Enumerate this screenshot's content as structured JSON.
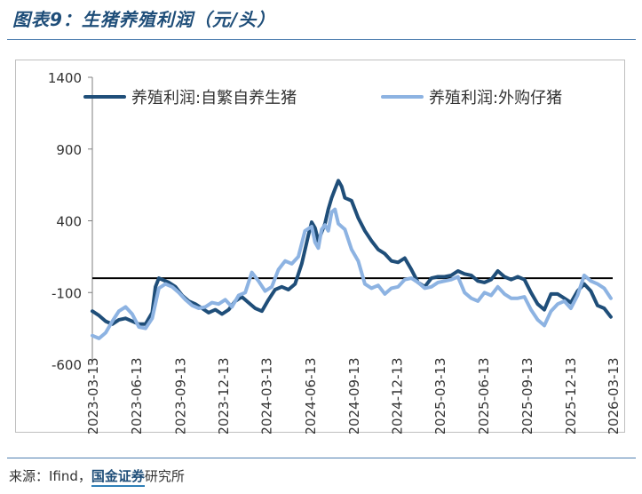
{
  "header": {
    "title": "图表9：生猪养殖利润（元/头）"
  },
  "footer": {
    "source_prefix": "来源：Ifind，",
    "source_brand": "国金证券",
    "source_suffix": "研究所"
  },
  "colors": {
    "series1": "#1f4e79",
    "series2": "#8db3e2",
    "zero_line": "#000000",
    "axis": "#7f7f7f"
  },
  "chart_data": {
    "type": "line",
    "title": "",
    "xlabel": "",
    "ylabel": "",
    "ylim": [
      -600,
      1400
    ],
    "yticks": [
      1400,
      900,
      400,
      -100,
      -600
    ],
    "xlim": [
      "2023-03-13",
      "2026-03-13"
    ],
    "xticks": [
      "2023-03-13",
      "2023-06-13",
      "2023-09-13",
      "2023-12-13",
      "2024-03-13",
      "2024-06-13",
      "2024-09-13",
      "2024-12-13",
      "2025-03-13",
      "2025-06-13",
      "2025-09-13",
      "2025-12-13",
      "2026-03-13"
    ],
    "legend_position": "top",
    "grid": false,
    "series": [
      {
        "name": "养殖利润:自繁自养生猪",
        "points": [
          [
            "2023-03-13",
            -230
          ],
          [
            "2023-03-27",
            -260
          ],
          [
            "2023-04-10",
            -300
          ],
          [
            "2023-04-24",
            -320
          ],
          [
            "2023-05-08",
            -290
          ],
          [
            "2023-05-22",
            -280
          ],
          [
            "2023-06-05",
            -300
          ],
          [
            "2023-06-19",
            -320
          ],
          [
            "2023-07-03",
            -320
          ],
          [
            "2023-07-17",
            -240
          ],
          [
            "2023-07-24",
            -60
          ],
          [
            "2023-07-31",
            0
          ],
          [
            "2023-08-07",
            -10
          ],
          [
            "2023-08-21",
            -30
          ],
          [
            "2023-09-04",
            -60
          ],
          [
            "2023-09-18",
            -120
          ],
          [
            "2023-10-02",
            -160
          ],
          [
            "2023-10-16",
            -180
          ],
          [
            "2023-10-30",
            -210
          ],
          [
            "2023-11-13",
            -240
          ],
          [
            "2023-11-27",
            -220
          ],
          [
            "2023-12-11",
            -250
          ],
          [
            "2023-12-25",
            -220
          ],
          [
            "2024-01-08",
            -160
          ],
          [
            "2024-01-22",
            -130
          ],
          [
            "2024-02-05",
            -170
          ],
          [
            "2024-02-19",
            -210
          ],
          [
            "2024-03-04",
            -230
          ],
          [
            "2024-03-18",
            -150
          ],
          [
            "2024-04-01",
            -80
          ],
          [
            "2024-04-15",
            -60
          ],
          [
            "2024-04-29",
            -80
          ],
          [
            "2024-05-13",
            -40
          ],
          [
            "2024-05-27",
            100
          ],
          [
            "2024-06-10",
            300
          ],
          [
            "2024-06-17",
            390
          ],
          [
            "2024-06-24",
            350
          ],
          [
            "2024-07-01",
            260
          ],
          [
            "2024-07-08",
            320
          ],
          [
            "2024-07-15",
            380
          ],
          [
            "2024-07-22",
            480
          ],
          [
            "2024-07-29",
            560
          ],
          [
            "2024-08-05",
            620
          ],
          [
            "2024-08-12",
            680
          ],
          [
            "2024-08-19",
            640
          ],
          [
            "2024-08-26",
            560
          ],
          [
            "2024-09-09",
            540
          ],
          [
            "2024-09-23",
            420
          ],
          [
            "2024-10-07",
            330
          ],
          [
            "2024-10-21",
            260
          ],
          [
            "2024-11-04",
            200
          ],
          [
            "2024-11-18",
            170
          ],
          [
            "2024-12-02",
            120
          ],
          [
            "2024-12-16",
            110
          ],
          [
            "2024-12-30",
            140
          ],
          [
            "2025-01-13",
            60
          ],
          [
            "2025-01-27",
            -30
          ],
          [
            "2025-02-10",
            -60
          ],
          [
            "2025-02-24",
            0
          ],
          [
            "2025-03-10",
            10
          ],
          [
            "2025-03-24",
            10
          ],
          [
            "2025-04-07",
            20
          ],
          [
            "2025-04-21",
            50
          ],
          [
            "2025-05-05",
            30
          ],
          [
            "2025-05-19",
            20
          ],
          [
            "2025-06-02",
            -20
          ],
          [
            "2025-06-16",
            -30
          ],
          [
            "2025-06-30",
            -10
          ],
          [
            "2025-07-14",
            50
          ],
          [
            "2025-07-28",
            10
          ],
          [
            "2025-08-11",
            -10
          ],
          [
            "2025-08-25",
            10
          ],
          [
            "2025-09-08",
            -10
          ],
          [
            "2025-09-22",
            -100
          ],
          [
            "2025-10-06",
            -180
          ],
          [
            "2025-10-20",
            -220
          ],
          [
            "2025-11-03",
            -110
          ],
          [
            "2025-11-17",
            -110
          ],
          [
            "2025-12-01",
            -140
          ],
          [
            "2025-12-15",
            -170
          ],
          [
            "2025-12-29",
            -90
          ],
          [
            "2026-01-12",
            -40
          ],
          [
            "2026-01-26",
            -90
          ],
          [
            "2026-02-09",
            -190
          ],
          [
            "2026-02-23",
            -210
          ],
          [
            "2026-03-09",
            -270
          ]
        ]
      },
      {
        "name": "养殖利润:外购仔猪",
        "points": [
          [
            "2023-03-13",
            -400
          ],
          [
            "2023-03-27",
            -420
          ],
          [
            "2023-04-10",
            -380
          ],
          [
            "2023-04-24",
            -300
          ],
          [
            "2023-05-08",
            -230
          ],
          [
            "2023-05-22",
            -200
          ],
          [
            "2023-06-05",
            -250
          ],
          [
            "2023-06-19",
            -340
          ],
          [
            "2023-07-03",
            -350
          ],
          [
            "2023-07-17",
            -280
          ],
          [
            "2023-07-31",
            -70
          ],
          [
            "2023-08-14",
            -40
          ],
          [
            "2023-08-28",
            -60
          ],
          [
            "2023-09-11",
            -100
          ],
          [
            "2023-09-25",
            -150
          ],
          [
            "2023-10-09",
            -190
          ],
          [
            "2023-10-23",
            -210
          ],
          [
            "2023-11-06",
            -200
          ],
          [
            "2023-11-20",
            -170
          ],
          [
            "2023-12-04",
            -180
          ],
          [
            "2023-12-18",
            -150
          ],
          [
            "2024-01-01",
            -200
          ],
          [
            "2024-01-15",
            -120
          ],
          [
            "2024-01-29",
            -100
          ],
          [
            "2024-02-12",
            40
          ],
          [
            "2024-02-26",
            -20
          ],
          [
            "2024-03-11",
            -90
          ],
          [
            "2024-03-25",
            -60
          ],
          [
            "2024-04-08",
            60
          ],
          [
            "2024-04-22",
            120
          ],
          [
            "2024-05-06",
            100
          ],
          [
            "2024-05-20",
            150
          ],
          [
            "2024-06-03",
            330
          ],
          [
            "2024-06-17",
            360
          ],
          [
            "2024-06-24",
            250
          ],
          [
            "2024-07-01",
            210
          ],
          [
            "2024-07-08",
            340
          ],
          [
            "2024-07-15",
            370
          ],
          [
            "2024-07-22",
            330
          ],
          [
            "2024-07-29",
            460
          ],
          [
            "2024-08-05",
            480
          ],
          [
            "2024-08-12",
            380
          ],
          [
            "2024-08-19",
            360
          ],
          [
            "2024-08-26",
            340
          ],
          [
            "2024-09-09",
            200
          ],
          [
            "2024-09-23",
            120
          ],
          [
            "2024-10-07",
            -40
          ],
          [
            "2024-10-21",
            -70
          ],
          [
            "2024-11-04",
            -50
          ],
          [
            "2024-11-18",
            -110
          ],
          [
            "2024-12-02",
            -70
          ],
          [
            "2024-12-16",
            -60
          ],
          [
            "2024-12-30",
            -10
          ],
          [
            "2025-01-13",
            0
          ],
          [
            "2025-01-27",
            -30
          ],
          [
            "2025-02-10",
            -70
          ],
          [
            "2025-02-24",
            -60
          ],
          [
            "2025-03-10",
            -30
          ],
          [
            "2025-03-24",
            -20
          ],
          [
            "2025-04-07",
            -10
          ],
          [
            "2025-04-21",
            10
          ],
          [
            "2025-05-05",
            -100
          ],
          [
            "2025-05-19",
            -140
          ],
          [
            "2025-06-02",
            -160
          ],
          [
            "2025-06-16",
            -100
          ],
          [
            "2025-06-30",
            -120
          ],
          [
            "2025-07-14",
            -60
          ],
          [
            "2025-07-28",
            -110
          ],
          [
            "2025-08-11",
            -140
          ],
          [
            "2025-08-25",
            -140
          ],
          [
            "2025-09-08",
            -130
          ],
          [
            "2025-09-22",
            -220
          ],
          [
            "2025-10-06",
            -290
          ],
          [
            "2025-10-20",
            -330
          ],
          [
            "2025-11-03",
            -230
          ],
          [
            "2025-11-17",
            -180
          ],
          [
            "2025-12-01",
            -160
          ],
          [
            "2025-12-15",
            -210
          ],
          [
            "2025-12-29",
            -120
          ],
          [
            "2026-01-12",
            20
          ],
          [
            "2026-01-19",
            0
          ],
          [
            "2026-01-26",
            -20
          ],
          [
            "2026-02-09",
            -40
          ],
          [
            "2026-02-23",
            -70
          ],
          [
            "2026-03-09",
            -140
          ]
        ]
      }
    ]
  }
}
